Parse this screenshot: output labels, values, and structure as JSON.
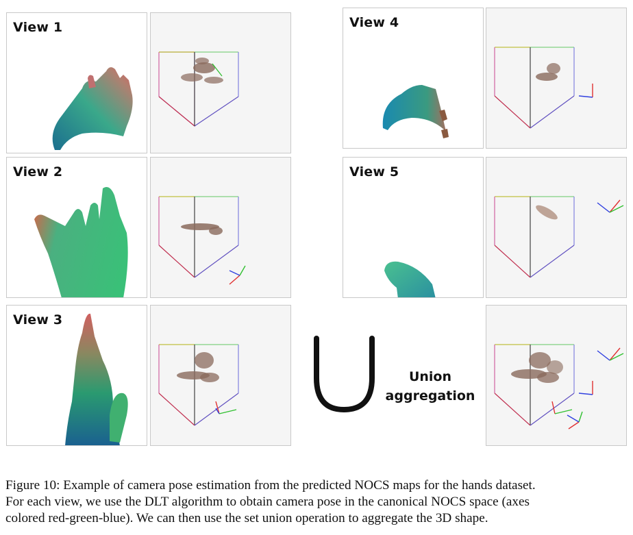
{
  "views": [
    {
      "label": "View 1"
    },
    {
      "label": "View 2"
    },
    {
      "label": "View 3"
    },
    {
      "label": "View 4"
    },
    {
      "label": "View 5"
    }
  ],
  "union": {
    "symbol": "union-symbol",
    "label_line1": "Union",
    "label_line2": "aggregation"
  },
  "caption": {
    "line1": "Figure 10: Example of camera pose estimation from the predicted NOCS maps for the hands dataset.",
    "line2": "For each view, we use the DLT algorithm to obtain camera pose in the canonical NOCS space (axes",
    "line3": "colored red-green-blue). We can then use the set union operation to aggregate the 3D shape."
  },
  "colors": {
    "axis_x": "#e03030",
    "axis_y": "#30c030",
    "axis_z": "#3040e0",
    "point_cloud": "#8a6a5c"
  },
  "icons": [
    "union-symbol-icon",
    "camera-axes-icon"
  ]
}
